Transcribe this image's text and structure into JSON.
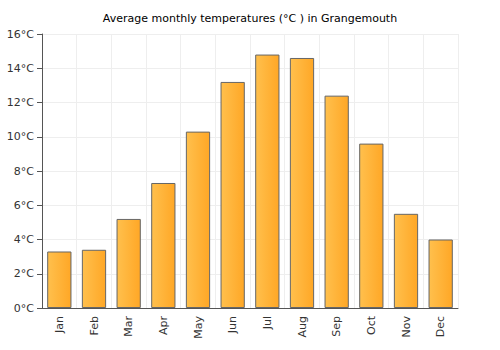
{
  "chart_data": {
    "type": "bar",
    "title": "Average monthly temperatures (°C ) in Grangemouth",
    "categories": [
      "Jan",
      "Feb",
      "Mar",
      "Apr",
      "May",
      "Jun",
      "Jul",
      "Aug",
      "Sep",
      "Oct",
      "Nov",
      "Dec"
    ],
    "values": [
      3.3,
      3.4,
      5.2,
      7.3,
      10.3,
      13.2,
      14.8,
      14.6,
      12.4,
      9.6,
      5.5,
      4.0
    ],
    "color": "#ffa726",
    "ylim": [
      0,
      16
    ],
    "yticks": [
      {
        "value": 0,
        "label": "0°C"
      },
      {
        "value": 2,
        "label": "2°C"
      },
      {
        "value": 4,
        "label": "4°C"
      },
      {
        "value": 6,
        "label": "6°C"
      },
      {
        "value": 8,
        "label": "8°C"
      },
      {
        "value": 10,
        "label": "10°C"
      },
      {
        "value": 12,
        "label": "12°C"
      },
      {
        "value": 14,
        "label": "14°C"
      },
      {
        "value": 16,
        "label": "16°C"
      }
    ],
    "grid": true
  }
}
